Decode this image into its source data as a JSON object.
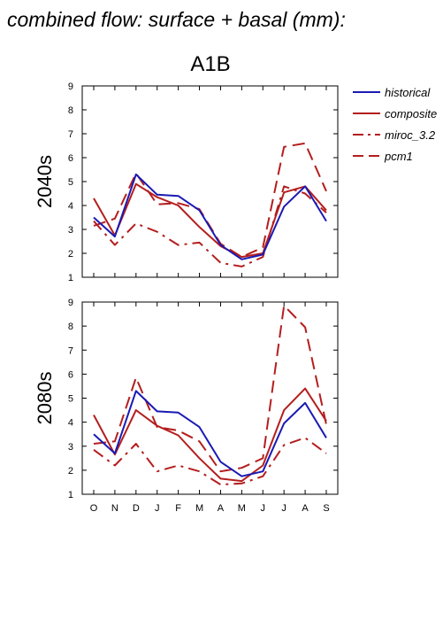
{
  "page": {
    "title": "combined flow: surface + basal (mm):",
    "scenario": "A1B"
  },
  "legend": {
    "entries": [
      {
        "name": "historical",
        "color": "#1a1ab4",
        "dash": "solid"
      },
      {
        "name": "composite",
        "color": "#b41e1e",
        "dash": "solid"
      },
      {
        "name": "miroc_3.2",
        "color": "#b41e1e",
        "dash": "dashdot"
      },
      {
        "name": "pcm1",
        "color": "#b41e1e",
        "dash": "dashed"
      }
    ]
  },
  "chart_data": [
    {
      "type": "line",
      "panel_label": "2040s",
      "categories": [
        "O",
        "N",
        "D",
        "J",
        "F",
        "M",
        "A",
        "M",
        "J",
        "J",
        "A",
        "S"
      ],
      "ylim": [
        1,
        9
      ],
      "yticks": [
        1,
        2,
        3,
        4,
        5,
        6,
        7,
        8,
        9
      ],
      "grid": false,
      "legend_position": "right",
      "series": [
        {
          "name": "historical",
          "values": [
            3.5,
            2.7,
            5.3,
            4.45,
            4.4,
            3.8,
            2.35,
            1.75,
            1.95,
            3.95,
            4.8,
            3.35
          ]
        },
        {
          "name": "composite",
          "values": [
            4.3,
            2.75,
            4.9,
            4.35,
            4.0,
            3.1,
            2.3,
            1.85,
            2.0,
            4.55,
            4.8,
            3.8
          ]
        },
        {
          "name": "miroc_3.2",
          "values": [
            3.35,
            2.35,
            3.25,
            2.9,
            2.35,
            2.45,
            1.6,
            1.45,
            1.85,
            4.8,
            4.5,
            3.7
          ]
        },
        {
          "name": "pcm1",
          "values": [
            3.15,
            3.45,
            5.35,
            4.05,
            4.1,
            3.85,
            2.4,
            1.85,
            2.25,
            6.45,
            6.6,
            4.6
          ]
        }
      ]
    },
    {
      "type": "line",
      "panel_label": "2080s",
      "categories": [
        "O",
        "N",
        "D",
        "J",
        "F",
        "M",
        "A",
        "M",
        "J",
        "J",
        "A",
        "S"
      ],
      "ylim": [
        1,
        9
      ],
      "yticks": [
        1,
        2,
        3,
        4,
        5,
        6,
        7,
        8,
        9
      ],
      "grid": false,
      "series": [
        {
          "name": "historical",
          "values": [
            3.5,
            2.7,
            5.3,
            4.45,
            4.4,
            3.8,
            2.35,
            1.75,
            1.95,
            3.95,
            4.8,
            3.35
          ]
        },
        {
          "name": "composite",
          "values": [
            4.3,
            2.65,
            4.5,
            3.85,
            3.45,
            2.5,
            1.65,
            1.55,
            2.2,
            4.5,
            5.4,
            4.05
          ]
        },
        {
          "name": "miroc_3.2",
          "values": [
            2.85,
            2.2,
            3.1,
            1.95,
            2.2,
            1.95,
            1.4,
            1.45,
            1.75,
            3.05,
            3.35,
            2.7
          ]
        },
        {
          "name": "pcm1",
          "values": [
            3.1,
            3.2,
            5.85,
            3.8,
            3.65,
            3.2,
            1.95,
            2.1,
            2.5,
            8.85,
            7.95,
            3.9
          ]
        }
      ]
    }
  ]
}
